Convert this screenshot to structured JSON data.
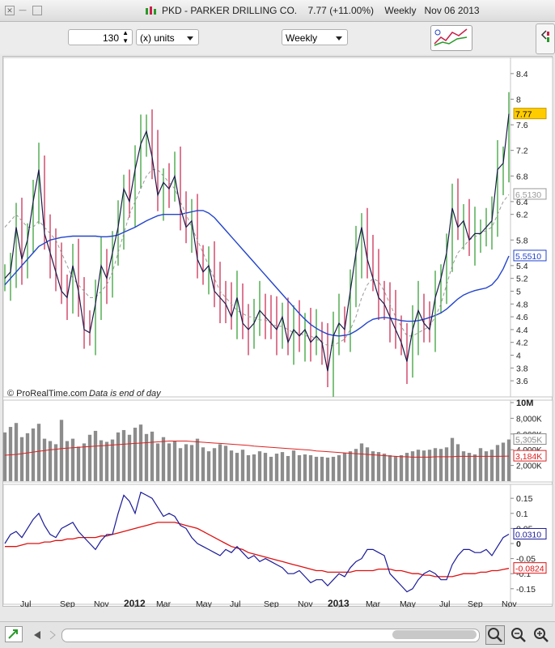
{
  "window": {
    "title_symbol": "PKD - PARKER DRILLING CO.",
    "title_price": "7.77 (+11.00%)",
    "title_period": "Weekly",
    "title_date": "Nov 06 2013"
  },
  "toolbar": {
    "units_value": "130",
    "units_label": "(x) units",
    "period_value": "Weekly"
  },
  "footer": {
    "brand": "© ProRealTime.com",
    "note": "Data is end of day"
  },
  "colors": {
    "up_bar": "#2a9a2a",
    "down_bar": "#c8204a",
    "price_line": "#1a1a4a",
    "ma_long": "#2244cc",
    "ma_short": "#999999",
    "volume_bar": "#8c8c8c",
    "volume_ma": "#dd2222",
    "indicator_line": "#1a1a99",
    "indicator_signal": "#dd1111",
    "last_price_badge": "#ffcc00"
  },
  "chart_data": [
    {
      "type": "line",
      "panel": "price",
      "ylim": [
        3.5,
        8.55
      ],
      "y_ticks": [
        "8.4",
        "8",
        "7.6",
        "7.2",
        "6.8",
        "6.4",
        "6.2",
        "5.8",
        "5.4",
        "5.2",
        "5",
        "4.8",
        "4.6",
        "4.4",
        "4.2",
        "4",
        "3.8",
        "3.6"
      ],
      "x_tick_labels": [
        "Jul",
        "Sep",
        "Nov",
        "2012",
        "Mar",
        "May",
        "Jul",
        "Sep",
        "Nov",
        "2013",
        "Mar",
        "May",
        "Jul",
        "Sep",
        "Nov"
      ],
      "value_labels": {
        "last_price": "7.77",
        "ma_short": "6.5130",
        "ma_long": "5.5510"
      },
      "series": [
        {
          "values": [
            5.2,
            5.3,
            6.0,
            5.5,
            5.8,
            6.4,
            6.9,
            5.9,
            5.6,
            5.3,
            5.0,
            4.9,
            5.4,
            5.0,
            4.4,
            4.35,
            4.8,
            5.4,
            5.2,
            5.6,
            6.0,
            6.6,
            6.4,
            6.9,
            7.3,
            7.5,
            7.1,
            6.5,
            6.7,
            6.6,
            6.8,
            6.3,
            6.0,
            6.1,
            5.5,
            5.3,
            5.4,
            5.0,
            4.9,
            4.8,
            4.6,
            4.9,
            4.5,
            4.4,
            4.5,
            4.7,
            4.6,
            4.5,
            4.4,
            4.6,
            4.2,
            4.4,
            4.3,
            4.4,
            4.2,
            4.3,
            4.2,
            3.75,
            4.3,
            4.5,
            4.4,
            5.0,
            5.6,
            6.0,
            5.5,
            5.2,
            4.9,
            4.8,
            4.6,
            4.4,
            4.2,
            3.9,
            4.4,
            4.7,
            4.5,
            4.4,
            4.9,
            5.2,
            5.6,
            6.3,
            6.0,
            6.1,
            5.8,
            5.9,
            5.9,
            6.0,
            6.1,
            6.9,
            7.0,
            7.77
          ]
        },
        {
          "values": [
            6.0,
            6.1,
            6.2,
            6.1,
            6.0,
            6.0,
            6.1,
            6.0,
            5.9,
            5.8,
            5.6,
            5.4,
            5.2,
            5.1,
            5.0,
            4.9,
            4.9,
            5.0,
            5.1,
            5.3,
            5.6,
            5.9,
            6.2,
            6.4,
            6.6,
            6.8,
            6.9,
            6.9,
            6.8,
            6.7,
            6.6,
            6.4,
            6.2,
            6.0,
            5.8,
            5.6,
            5.4,
            5.2,
            5.0,
            4.9,
            4.8,
            4.7,
            4.65,
            4.6,
            4.6,
            4.55,
            4.55,
            4.5,
            4.45,
            4.45,
            4.4,
            4.35,
            4.35,
            4.3,
            4.3,
            4.25,
            4.2,
            4.15,
            4.15,
            4.2,
            4.25,
            4.4,
            4.6,
            4.9,
            5.1,
            5.2,
            5.15,
            5.0,
            4.8,
            4.6,
            4.45,
            4.3,
            4.3,
            4.35,
            4.4,
            4.45,
            4.6,
            4.8,
            5.1,
            5.4,
            5.6,
            5.7,
            5.8,
            5.85,
            5.9,
            5.95,
            6.0,
            6.2,
            6.4,
            6.51
          ]
        },
        {
          "values": [
            5.1,
            5.2,
            5.3,
            5.4,
            5.5,
            5.6,
            5.7,
            5.75,
            5.8,
            5.82,
            5.84,
            5.85,
            5.86,
            5.86,
            5.86,
            5.86,
            5.86,
            5.85,
            5.85,
            5.86,
            5.88,
            5.92,
            5.96,
            6.0,
            6.05,
            6.1,
            6.14,
            6.18,
            6.2,
            6.2,
            6.2,
            6.2,
            6.22,
            6.24,
            6.26,
            6.26,
            6.22,
            6.15,
            6.05,
            5.95,
            5.85,
            5.75,
            5.65,
            5.55,
            5.45,
            5.35,
            5.25,
            5.15,
            5.05,
            4.95,
            4.85,
            4.75,
            4.65,
            4.56,
            4.48,
            4.42,
            4.37,
            4.33,
            4.31,
            4.3,
            4.31,
            4.33,
            4.38,
            4.44,
            4.51,
            4.56,
            4.58,
            4.59,
            4.58,
            4.56,
            4.54,
            4.53,
            4.53,
            4.54,
            4.56,
            4.59,
            4.62,
            4.66,
            4.72,
            4.8,
            4.88,
            4.94,
            4.98,
            5.01,
            5.03,
            5.05,
            5.1,
            5.2,
            5.35,
            5.55
          ]
        }
      ]
    },
    {
      "type": "bar",
      "panel": "volume",
      "ylim": [
        0,
        10000
      ],
      "y_ticks": [
        "10M",
        "8,000K",
        "6,000K",
        "4,000K",
        "2,000K"
      ],
      "value_labels": {
        "volume_last": "5,305K",
        "volume_ma": "3,184K"
      },
      "series": [
        {
          "values": [
            6200,
            6900,
            7400,
            5600,
            6100,
            6700,
            7300,
            5400,
            5100,
            4700,
            7800,
            5100,
            5400,
            4400,
            4800,
            5900,
            6400,
            5200,
            5000,
            5300,
            6200,
            6500,
            5900,
            6800,
            7200,
            6000,
            6300,
            4800,
            5600,
            4800,
            5100,
            4200,
            4700,
            4600,
            5400,
            4300,
            3800,
            4200,
            4700,
            4500,
            3900,
            3600,
            4000,
            3300,
            3400,
            3800,
            3600,
            3100,
            3500,
            3700,
            3200,
            3900,
            3300,
            3400,
            3300,
            3100,
            3100,
            3000,
            3100,
            3300,
            3600,
            3800,
            4100,
            4800,
            4300,
            3800,
            3700,
            3500,
            3300,
            3200,
            3300,
            3600,
            3800,
            4000,
            3900,
            4000,
            4200,
            4100,
            4300,
            5500,
            4700,
            3800,
            3600,
            3400,
            4200,
            3800,
            4000,
            4600,
            4900,
            5305
          ]
        },
        {
          "values": [
            3300,
            3350,
            3400,
            3500,
            3600,
            3700,
            3800,
            3900,
            4000,
            4050,
            4150,
            4200,
            4250,
            4300,
            4350,
            4400,
            4450,
            4500,
            4550,
            4600,
            4650,
            4700,
            4750,
            4800,
            4850,
            4900,
            4950,
            5000,
            5050,
            5100,
            5100,
            5100,
            5100,
            5050,
            5000,
            4950,
            4900,
            4850,
            4800,
            4750,
            4700,
            4650,
            4600,
            4550,
            4450,
            4400,
            4350,
            4300,
            4250,
            4200,
            4150,
            4100,
            4050,
            4000,
            3950,
            3850,
            3800,
            3750,
            3700,
            3650,
            3600,
            3550,
            3500,
            3450,
            3400,
            3350,
            3300,
            3250,
            3200,
            3150,
            3100,
            3100,
            3050,
            3050,
            3050,
            3050,
            3100,
            3100,
            3100,
            3100,
            3150,
            3150,
            3150,
            3150,
            3150,
            3150,
            3150,
            3150,
            3170,
            3184
          ]
        }
      ]
    },
    {
      "type": "line",
      "panel": "indicator",
      "ylim": [
        -0.18,
        0.18
      ],
      "y_ticks": [
        "0.15",
        "0.1",
        "0.05",
        "0",
        "-0.05",
        "-0.1",
        "-0.15"
      ],
      "value_labels": {
        "indicator_last": "0.0310",
        "signal_last": "-0.0824"
      },
      "series": [
        {
          "values": [
            0.0,
            0.03,
            0.04,
            0.02,
            0.05,
            0.08,
            0.1,
            0.06,
            0.03,
            0.02,
            0.05,
            0.06,
            0.07,
            0.04,
            0.02,
            0.0,
            -0.02,
            0.01,
            0.03,
            0.03,
            0.1,
            0.16,
            0.14,
            0.1,
            0.17,
            0.16,
            0.15,
            0.12,
            0.09,
            0.1,
            0.09,
            0.06,
            0.05,
            0.02,
            0.0,
            -0.01,
            -0.02,
            -0.03,
            -0.04,
            -0.02,
            -0.03,
            -0.01,
            -0.03,
            -0.05,
            -0.04,
            -0.06,
            -0.05,
            -0.06,
            -0.07,
            -0.08,
            -0.1,
            -0.1,
            -0.09,
            -0.11,
            -0.13,
            -0.12,
            -0.12,
            -0.14,
            -0.12,
            -0.1,
            -0.11,
            -0.08,
            -0.06,
            -0.05,
            -0.02,
            -0.02,
            -0.03,
            -0.04,
            -0.1,
            -0.12,
            -0.14,
            -0.16,
            -0.15,
            -0.12,
            -0.1,
            -0.09,
            -0.1,
            -0.12,
            -0.12,
            -0.07,
            -0.04,
            -0.02,
            -0.02,
            -0.03,
            -0.03,
            -0.02,
            -0.04,
            -0.01,
            0.02,
            0.031
          ]
        },
        {
          "values": [
            -0.01,
            -0.01,
            -0.01,
            -0.005,
            0.0,
            0.0,
            0.0,
            0.005,
            0.005,
            0.01,
            0.01,
            0.015,
            0.015,
            0.02,
            0.02,
            0.02,
            0.02,
            0.025,
            0.025,
            0.03,
            0.035,
            0.04,
            0.045,
            0.05,
            0.055,
            0.06,
            0.065,
            0.07,
            0.07,
            0.07,
            0.07,
            0.065,
            0.06,
            0.055,
            0.05,
            0.04,
            0.03,
            0.02,
            0.01,
            0.0,
            -0.01,
            -0.015,
            -0.02,
            -0.03,
            -0.035,
            -0.04,
            -0.045,
            -0.05,
            -0.055,
            -0.06,
            -0.065,
            -0.07,
            -0.075,
            -0.08,
            -0.085,
            -0.09,
            -0.09,
            -0.095,
            -0.095,
            -0.095,
            -0.095,
            -0.095,
            -0.09,
            -0.09,
            -0.09,
            -0.09,
            -0.085,
            -0.085,
            -0.085,
            -0.09,
            -0.09,
            -0.095,
            -0.1,
            -0.1,
            -0.105,
            -0.105,
            -0.11,
            -0.11,
            -0.11,
            -0.11,
            -0.105,
            -0.1,
            -0.1,
            -0.1,
            -0.095,
            -0.095,
            -0.09,
            -0.09,
            -0.086,
            -0.0824
          ]
        }
      ]
    }
  ]
}
